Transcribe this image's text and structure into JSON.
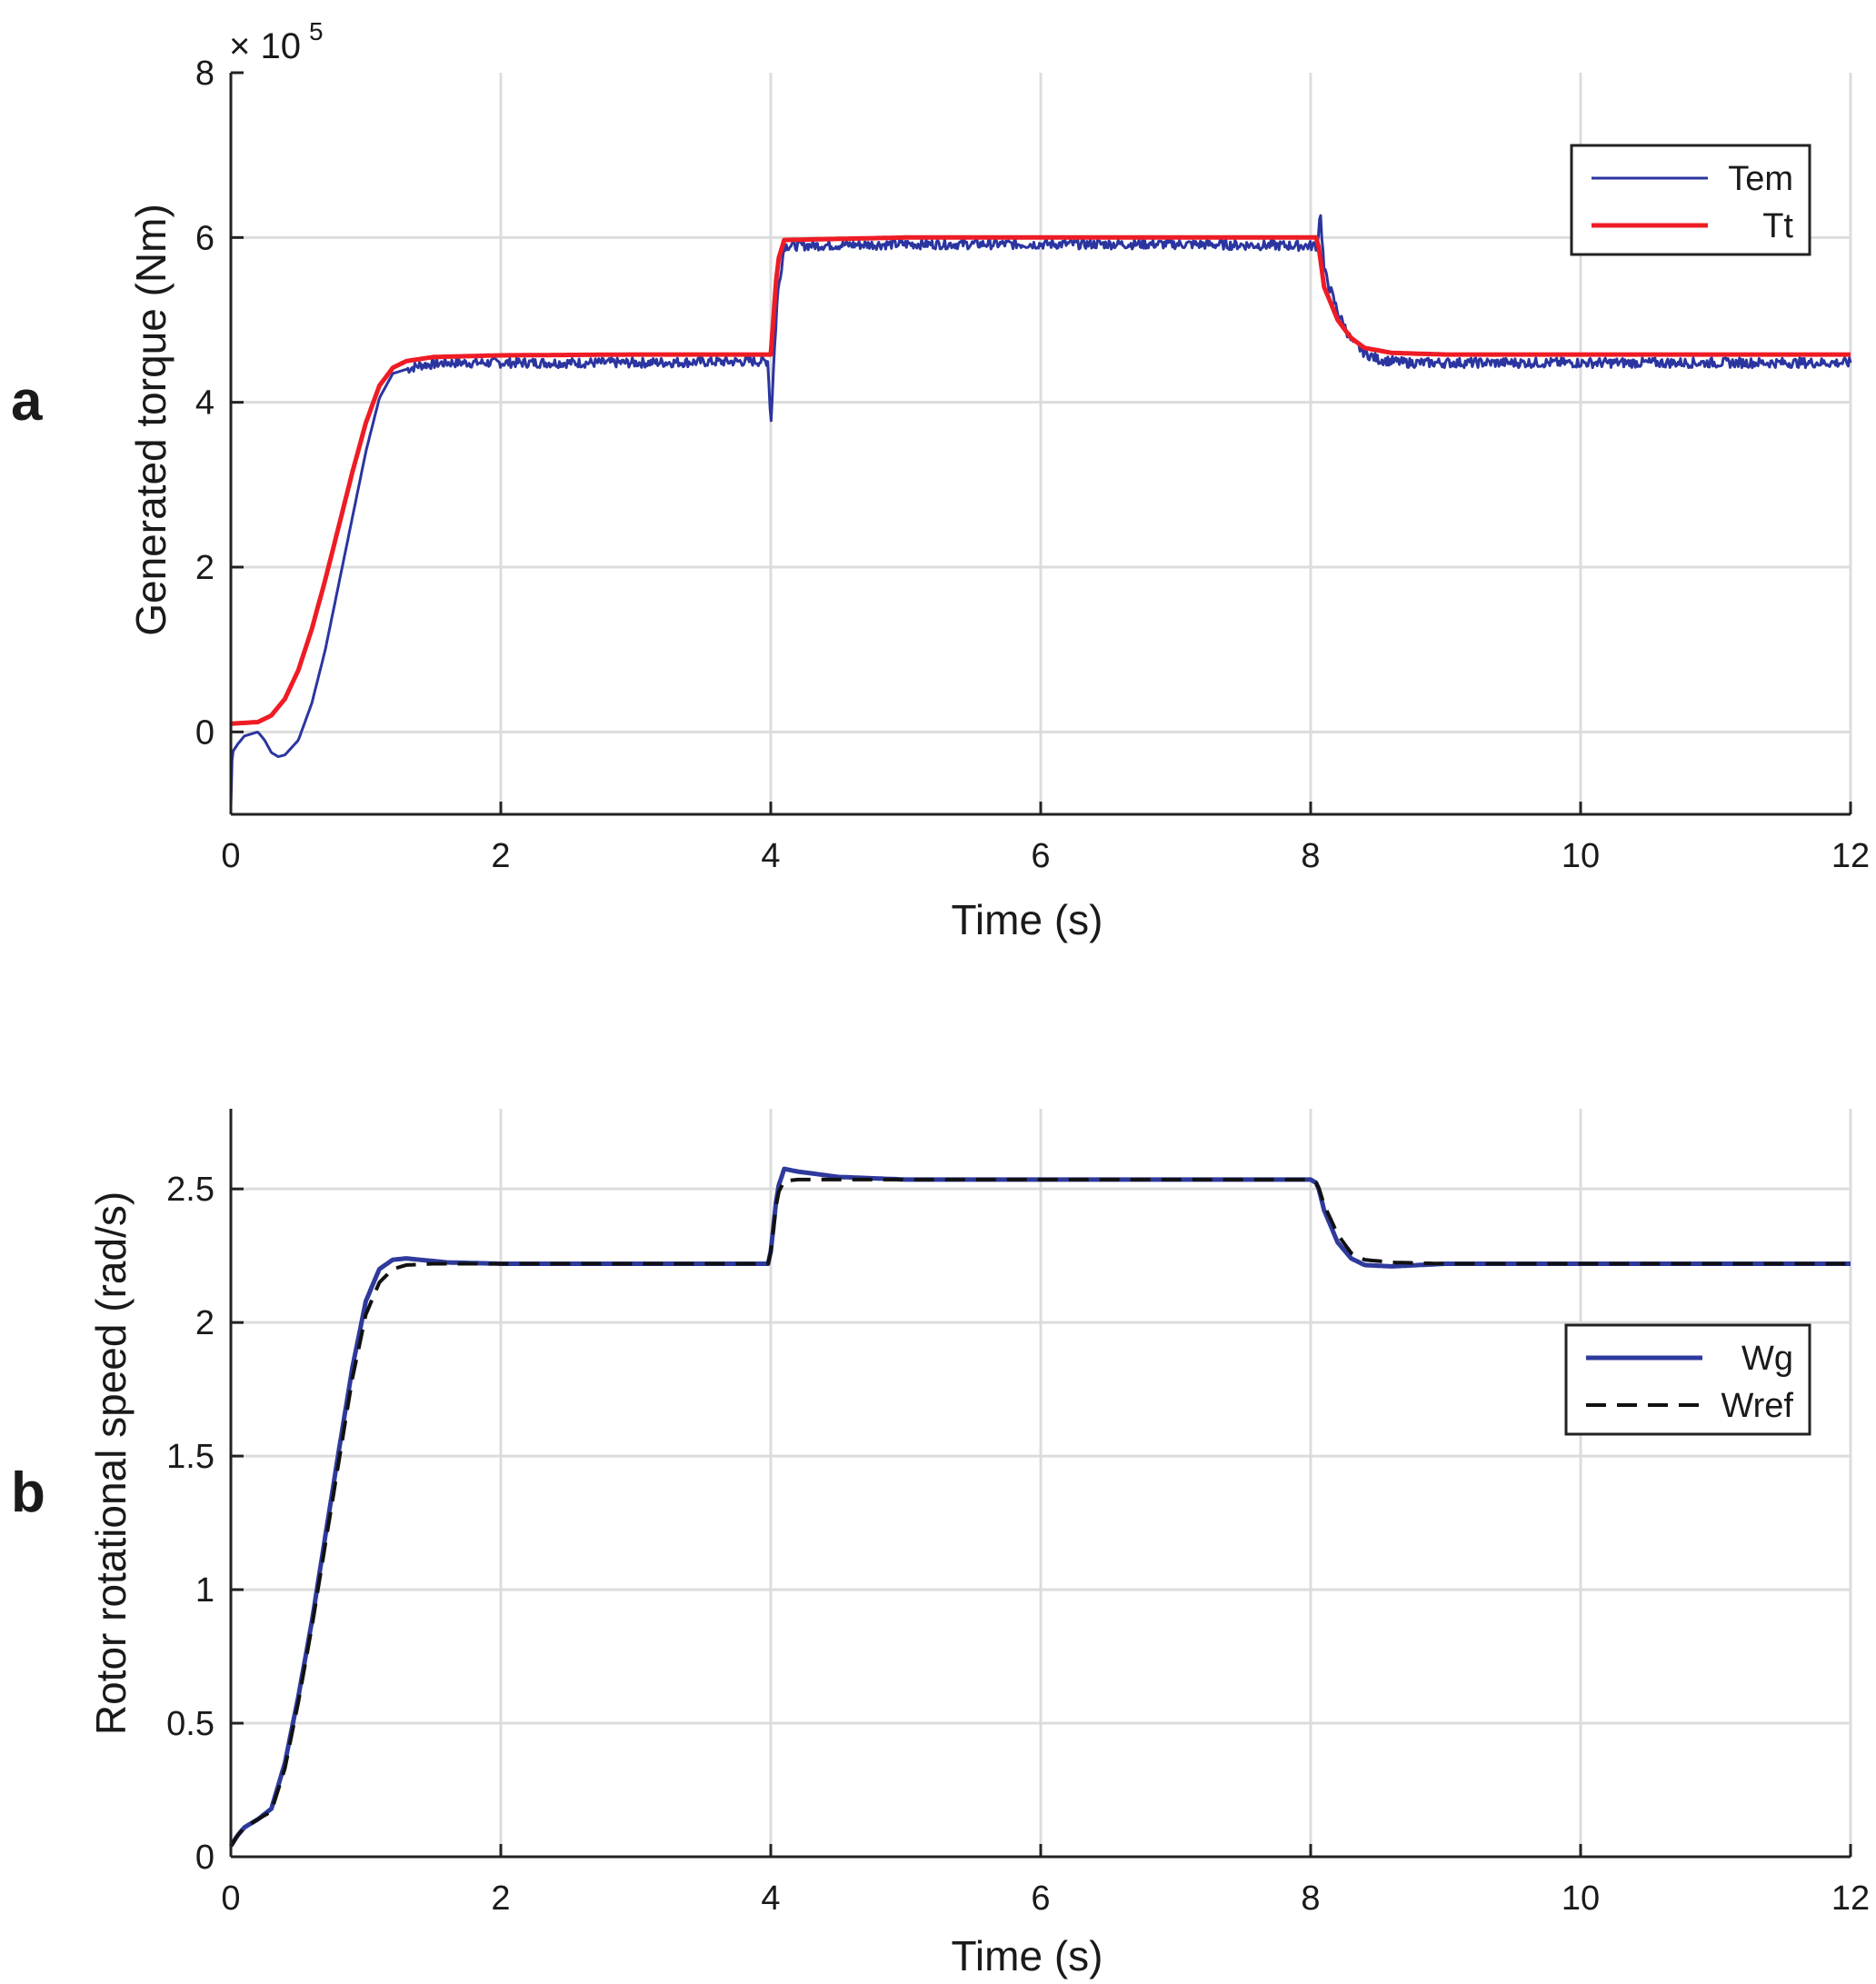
{
  "colors": {
    "tem": "#2b35a0",
    "tt": "#ee1c25",
    "wg": "#2e3a9c",
    "wref": "#111111",
    "grid": "#dcdcdc",
    "axis": "#222222"
  },
  "chart_data": [
    {
      "panel": "a",
      "type": "line",
      "title": "",
      "xlabel": "Time (s)",
      "ylabel": "Generated torque (Nm)",
      "y_scale_exponent": {
        "times": "× 10",
        "power": "5"
      },
      "xlim": [
        0,
        12
      ],
      "ylim": [
        -1,
        8
      ],
      "xticks": [
        0,
        2,
        4,
        6,
        8,
        10,
        12
      ],
      "xtick_labels": [
        "0",
        "2",
        "4",
        "6",
        "8",
        "10",
        "12"
      ],
      "yticks": [
        0,
        2,
        4,
        6,
        8
      ],
      "ytick_labels": [
        "0",
        "2",
        "4",
        "6",
        "8"
      ],
      "grid": true,
      "legend_position": "top-right",
      "series": [
        {
          "name": "Tem",
          "color_key": "tem",
          "style": "solid",
          "noise": 0.06,
          "x": [
            0,
            0.01,
            0.05,
            0.1,
            0.2,
            0.25,
            0.3,
            0.35,
            0.4,
            0.5,
            0.6,
            0.7,
            0.8,
            0.9,
            1.0,
            1.1,
            1.2,
            1.4,
            1.6,
            2.0,
            3.0,
            3.98,
            4.0,
            4.02,
            4.05,
            4.1,
            5.0,
            6.0,
            7.0,
            7.95,
            8.05,
            8.07,
            8.1,
            8.2,
            8.3,
            8.4,
            8.5,
            8.7,
            9.0,
            10.0,
            11.0,
            12.0
          ],
          "y": [
            -0.9,
            -0.25,
            -0.15,
            -0.05,
            0.0,
            -0.1,
            -0.25,
            -0.3,
            -0.28,
            -0.1,
            0.35,
            1.0,
            1.8,
            2.6,
            3.4,
            4.05,
            4.35,
            4.45,
            4.48,
            4.48,
            4.48,
            4.5,
            3.7,
            4.4,
            5.3,
            5.9,
            5.92,
            5.92,
            5.92,
            5.9,
            5.9,
            6.35,
            5.6,
            5.1,
            4.75,
            4.6,
            4.52,
            4.48,
            4.48,
            4.48,
            4.48,
            4.48
          ]
        },
        {
          "name": "Tt",
          "color_key": "tt",
          "style": "solid",
          "noise": 0,
          "x": [
            0,
            0.2,
            0.3,
            0.4,
            0.5,
            0.6,
            0.7,
            0.8,
            0.9,
            1.0,
            1.1,
            1.2,
            1.3,
            1.5,
            2.0,
            3.0,
            4.0,
            4.05,
            4.1,
            5.0,
            6.0,
            7.0,
            8.05,
            8.1,
            8.2,
            8.3,
            8.4,
            8.6,
            9.0,
            10.0,
            12.0
          ],
          "y": [
            0.1,
            0.12,
            0.2,
            0.4,
            0.75,
            1.25,
            1.85,
            2.5,
            3.15,
            3.75,
            4.2,
            4.42,
            4.5,
            4.55,
            4.57,
            4.58,
            4.58,
            5.7,
            5.97,
            6.0,
            6.0,
            6.0,
            6.0,
            5.4,
            5.0,
            4.78,
            4.66,
            4.6,
            4.58,
            4.58,
            4.58
          ]
        }
      ]
    },
    {
      "panel": "b",
      "type": "line",
      "title": "",
      "xlabel": "Time (s)",
      "ylabel": "Rotor rotational speed (rad/s)",
      "xlim": [
        0,
        12
      ],
      "ylim": [
        0,
        2.8
      ],
      "xticks": [
        0,
        2,
        4,
        6,
        8,
        10,
        12
      ],
      "xtick_labels": [
        "0",
        "2",
        "4",
        "6",
        "8",
        "10",
        "12"
      ],
      "yticks": [
        0,
        0.5,
        1,
        1.5,
        2,
        2.5
      ],
      "ytick_labels": [
        "0",
        "0.5",
        "1",
        "1.5",
        "2",
        "2.5"
      ],
      "grid": true,
      "legend_position": "center-right",
      "series": [
        {
          "name": "Wg",
          "color_key": "wg",
          "style": "solid",
          "x": [
            0,
            0.05,
            0.1,
            0.2,
            0.3,
            0.4,
            0.5,
            0.6,
            0.7,
            0.8,
            0.9,
            1.0,
            1.1,
            1.2,
            1.3,
            1.4,
            1.6,
            2.0,
            3.0,
            3.99,
            4.05,
            4.1,
            4.2,
            4.5,
            5.0,
            6.0,
            8.0,
            8.05,
            8.1,
            8.2,
            8.3,
            8.4,
            8.6,
            8.8,
            9.0,
            10.0,
            12.0
          ],
          "y": [
            0.04,
            0.08,
            0.11,
            0.14,
            0.18,
            0.35,
            0.6,
            0.88,
            1.2,
            1.52,
            1.83,
            2.08,
            2.2,
            2.235,
            2.24,
            2.235,
            2.225,
            2.22,
            2.22,
            2.22,
            2.5,
            2.575,
            2.565,
            2.545,
            2.535,
            2.535,
            2.535,
            2.52,
            2.42,
            2.3,
            2.24,
            2.215,
            2.21,
            2.215,
            2.22,
            2.22,
            2.22
          ]
        },
        {
          "name": "Wref",
          "color_key": "wref",
          "style": "dashed",
          "x": [
            0,
            0.05,
            0.1,
            0.2,
            0.3,
            0.4,
            0.5,
            0.6,
            0.7,
            0.8,
            0.9,
            1.0,
            1.1,
            1.2,
            1.3,
            1.5,
            2.0,
            3.0,
            3.99,
            4.05,
            4.1,
            4.2,
            5.0,
            6.0,
            8.0,
            8.05,
            8.1,
            8.2,
            8.3,
            8.4,
            8.6,
            9.0,
            10.0,
            12.0
          ],
          "y": [
            0.04,
            0.08,
            0.11,
            0.14,
            0.17,
            0.33,
            0.58,
            0.86,
            1.17,
            1.48,
            1.79,
            2.03,
            2.15,
            2.2,
            2.215,
            2.22,
            2.22,
            2.22,
            2.22,
            2.48,
            2.53,
            2.535,
            2.535,
            2.535,
            2.535,
            2.52,
            2.44,
            2.33,
            2.26,
            2.235,
            2.225,
            2.22,
            2.22,
            2.22
          ]
        }
      ]
    }
  ]
}
